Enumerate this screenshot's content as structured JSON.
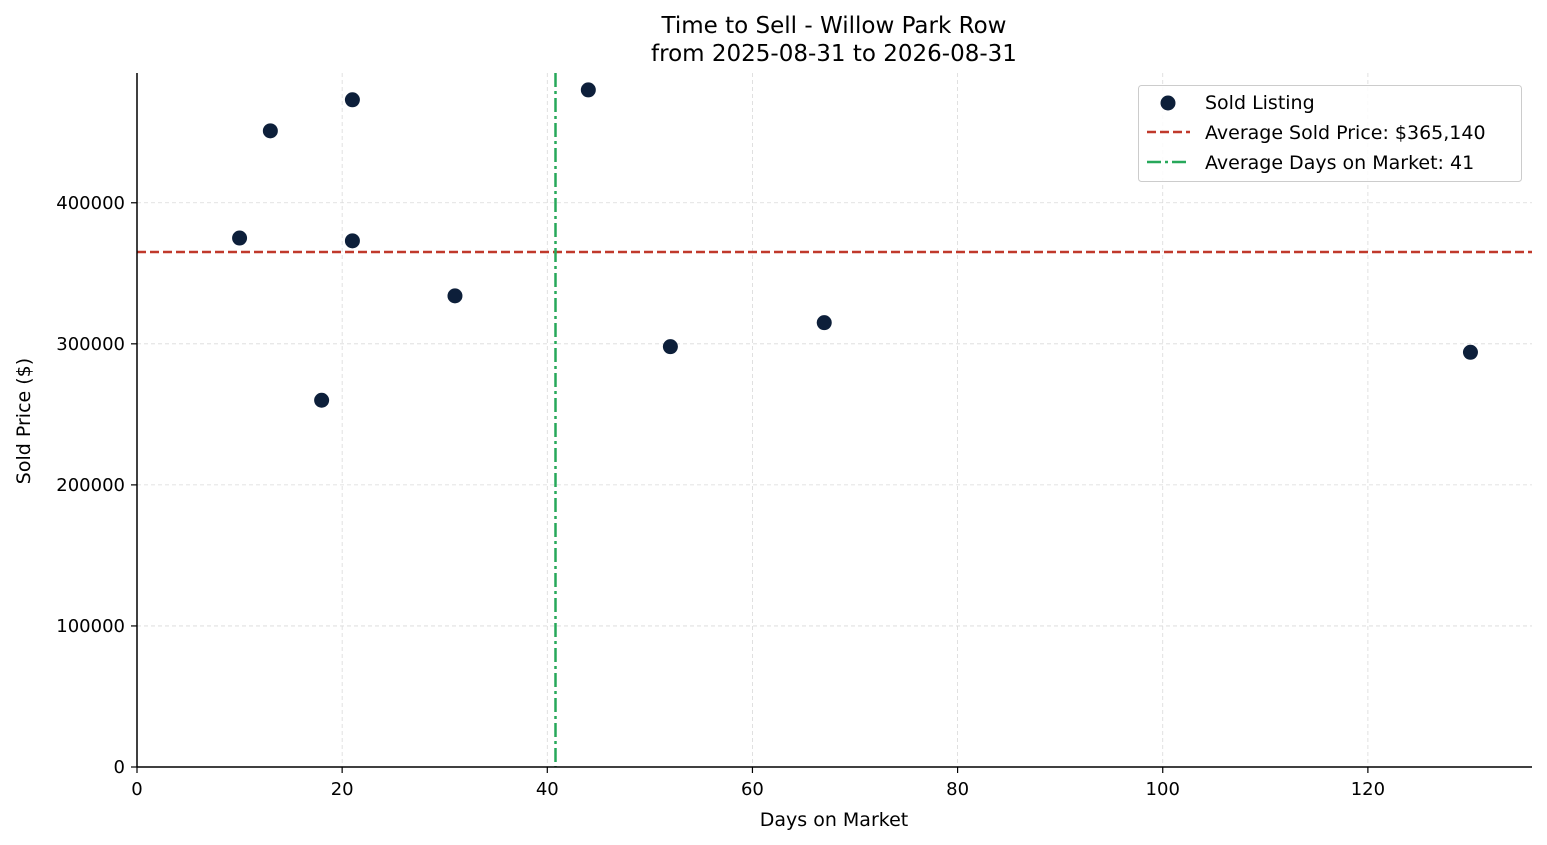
{
  "chart_data": {
    "type": "scatter",
    "title": "Time to Sell - Willow Park Row",
    "subtitle": "from 2025-08-31 to 2026-08-31",
    "xlabel": "Days on Market",
    "ylabel": "Sold Price ($)",
    "xlim": [
      0,
      136
    ],
    "ylim": [
      0,
      492000
    ],
    "x_ticks": [
      0,
      20,
      40,
      60,
      80,
      100,
      120
    ],
    "y_ticks": [
      0,
      100000,
      200000,
      300000,
      400000
    ],
    "grid": true,
    "legend_position": "top-right",
    "series": [
      {
        "name": "Sold Listing",
        "color": "#0d1f3a",
        "points": [
          {
            "x": 10,
            "y": 375000
          },
          {
            "x": 13,
            "y": 451000
          },
          {
            "x": 18,
            "y": 260000
          },
          {
            "x": 21,
            "y": 473000
          },
          {
            "x": 21,
            "y": 373000
          },
          {
            "x": 31,
            "y": 334000
          },
          {
            "x": 44,
            "y": 480000
          },
          {
            "x": 52,
            "y": 298000
          },
          {
            "x": 67,
            "y": 315000
          },
          {
            "x": 130,
            "y": 294000
          }
        ]
      }
    ],
    "reference_lines": [
      {
        "orientation": "horizontal",
        "value": 365140,
        "label": "Average Sold Price: $365,140",
        "color": "#c0392b",
        "style": "dashed"
      },
      {
        "orientation": "vertical",
        "value": 40.8,
        "label": "Average Days on Market: 41",
        "color": "#27a85a",
        "style": "dashdot"
      }
    ]
  }
}
